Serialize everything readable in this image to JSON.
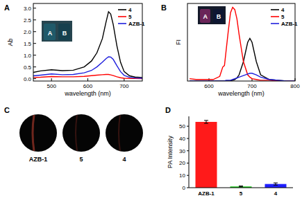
{
  "chart_data": [
    {
      "type": "line",
      "title": "A",
      "x_label": "wavelength (nm)",
      "y_label": "Ab",
      "x": [
        450,
        470,
        500,
        530,
        560,
        590,
        610,
        625,
        640,
        650,
        657,
        663,
        670,
        680,
        690,
        700,
        715,
        730,
        750
      ],
      "series": [
        {
          "name": "4",
          "color": "#000000",
          "values": [
            0.27,
            0.33,
            0.38,
            0.34,
            0.36,
            0.5,
            0.75,
            1.1,
            1.7,
            2.4,
            2.85,
            2.75,
            2.3,
            1.4,
            0.7,
            0.3,
            0.12,
            0.07,
            0.05
          ]
        },
        {
          "name": "5",
          "color": "#ff0000",
          "values": [
            0.05,
            0.06,
            0.09,
            0.08,
            0.08,
            0.1,
            0.13,
            0.15,
            0.17,
            0.18,
            0.18,
            0.16,
            0.13,
            0.08,
            0.04,
            0.02,
            0.01,
            0.01,
            0.0
          ]
        },
        {
          "name": "AZB-1",
          "color": "#1f1fdd",
          "values": [
            0.12,
            0.15,
            0.2,
            0.17,
            0.18,
            0.25,
            0.35,
            0.5,
            0.7,
            0.85,
            0.93,
            0.92,
            0.82,
            0.55,
            0.3,
            0.14,
            0.06,
            0.03,
            0.02
          ]
        }
      ],
      "xlim": [
        450,
        750
      ],
      "xticks": [
        500,
        600,
        700
      ],
      "ylim": [
        -0.1,
        3.2
      ],
      "yticks": [
        {
          "value": 0,
          "label": "0.0"
        },
        0.5,
        {
          "value": 1,
          "label": "1.0"
        },
        1.5,
        {
          "value": 2,
          "label": "2.0"
        },
        2.5,
        {
          "value": 3,
          "label": "3.0"
        }
      ],
      "legend": "upper right",
      "annotations": [
        "A",
        "B"
      ]
    },
    {
      "type": "line",
      "title": "B",
      "x_label": "wavelength (nm)",
      "y_label": "FI",
      "x": [
        555,
        570,
        590,
        610,
        625,
        632,
        636,
        640,
        645,
        650,
        655,
        660,
        665,
        670,
        680,
        690,
        695,
        700,
        710,
        720,
        740,
        760,
        780,
        800
      ],
      "series": [
        {
          "name": "4",
          "color": "#000000",
          "values": [
            0,
            0,
            0,
            0,
            0,
            0,
            0,
            0,
            0,
            0,
            1,
            2,
            4,
            8,
            25,
            50,
            55,
            50,
            25,
            8,
            2,
            1,
            0,
            0
          ]
        },
        {
          "name": "5",
          "color": "#ff0000",
          "values": [
            3,
            2,
            2,
            2,
            6,
            18,
            20,
            40,
            65,
            88,
            95,
            92,
            80,
            60,
            25,
            8,
            5,
            3,
            2,
            1,
            1,
            0,
            0,
            0
          ]
        },
        {
          "name": "AZB-1",
          "color": "#1f1fdd",
          "values": [
            0,
            0,
            0,
            0,
            0,
            0,
            0,
            1,
            1,
            1,
            2,
            3,
            4,
            5,
            7,
            9,
            10,
            10,
            8,
            5,
            2,
            1,
            0,
            0
          ]
        }
      ],
      "xlim": [
        550,
        800
      ],
      "xticks": [
        600,
        700,
        800
      ],
      "ylim": [
        0,
        100
      ],
      "tick_labels": "x",
      "legend": "upper right",
      "annotations": [
        "A",
        "B"
      ]
    },
    {
      "type": "image",
      "title": "C",
      "categories": [
        "AZB-1",
        "5",
        "4"
      ]
    },
    {
      "type": "bar",
      "title": "D",
      "y_label": "PA Intensity",
      "categories": [
        "AZB-1",
        "5",
        "4"
      ],
      "values": [
        53.5,
        1,
        3
      ],
      "errors": [
        1.2,
        0.4,
        0.9
      ],
      "colors": [
        "#ff1a1a",
        "#1fcc1f",
        "#1f1fff"
      ],
      "ylim": [
        0,
        58
      ],
      "yticks": [
        0,
        10,
        20,
        30,
        40,
        50
      ]
    }
  ]
}
